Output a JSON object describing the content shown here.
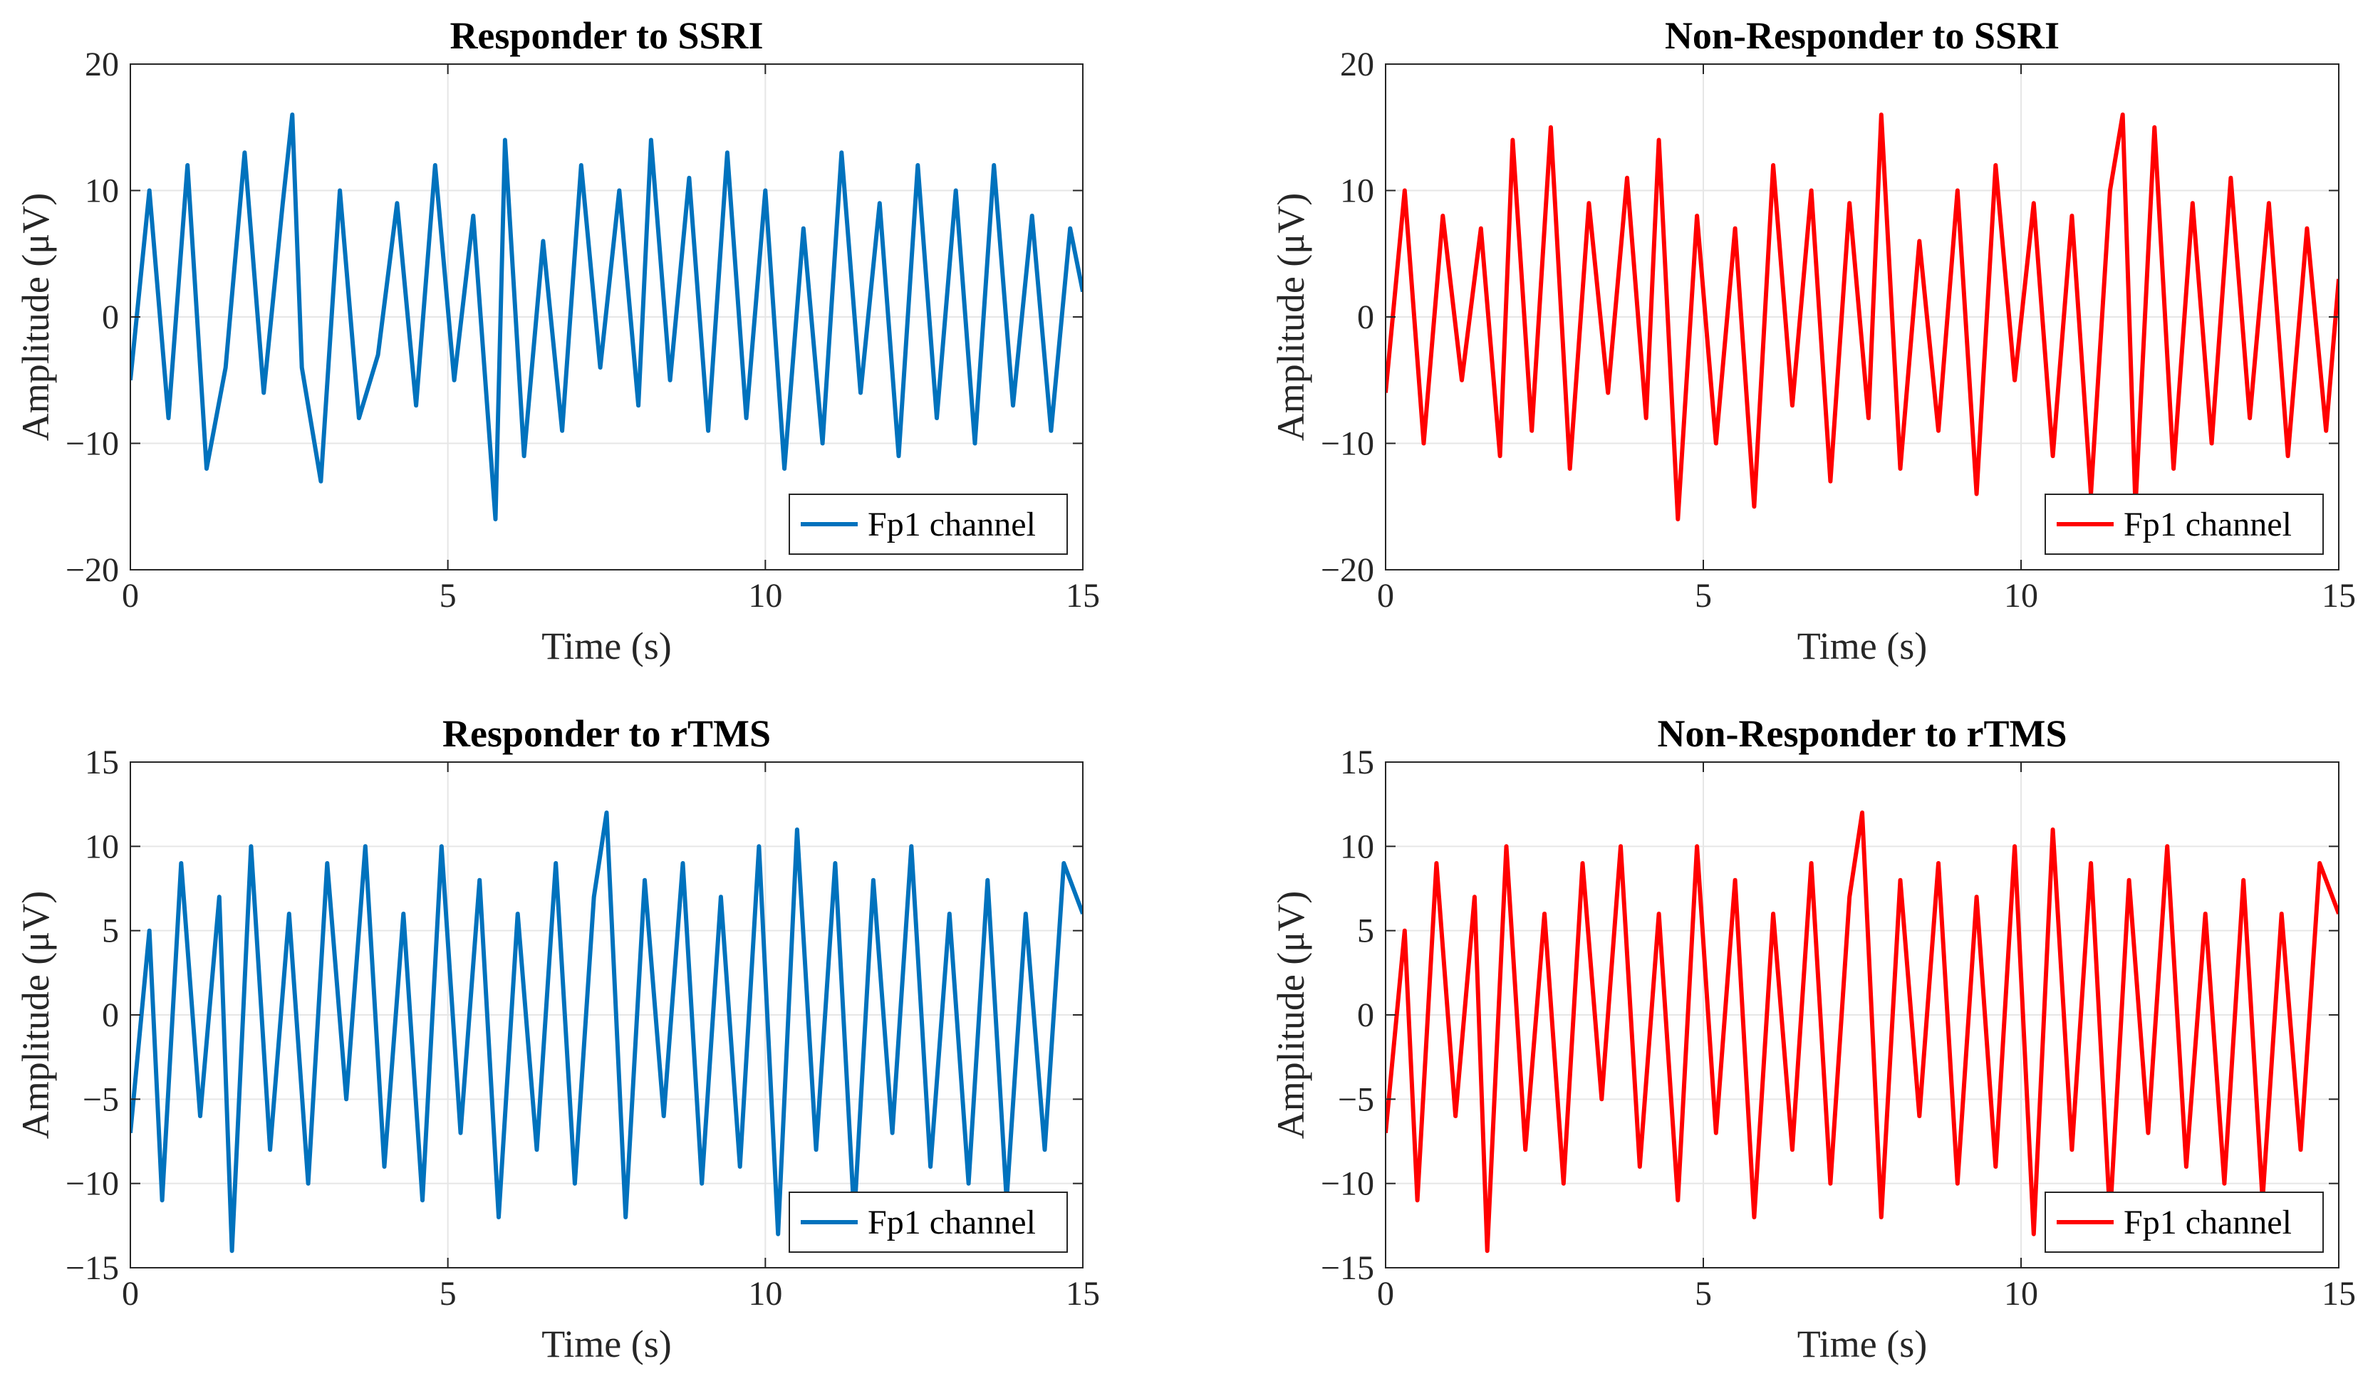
{
  "chart_data": [
    {
      "type": "line",
      "title": "Responder to SSRI",
      "xlabel": "Time (s)",
      "ylabel": "Amplitude (μV)",
      "xlim": [
        0,
        15
      ],
      "ylim": [
        -20,
        20
      ],
      "xticks": [
        0,
        5,
        10,
        15
      ],
      "yticks": [
        -20,
        -10,
        0,
        10,
        20
      ],
      "ytick_labels": [
        "−20",
        "−10",
        "0",
        "10",
        "20"
      ],
      "grid": true,
      "legend_position": "bottom-right",
      "series": [
        {
          "name": "Fp1 channel",
          "color": "#0072BD",
          "x": [
            0,
            0.3,
            0.6,
            0.9,
            1.2,
            1.5,
            1.8,
            2.1,
            2.4,
            2.55,
            2.7,
            3.0,
            3.3,
            3.6,
            3.9,
            4.2,
            4.5,
            4.8,
            5.1,
            5.4,
            5.75,
            5.9,
            6.2,
            6.5,
            6.8,
            7.1,
            7.4,
            7.7,
            8.0,
            8.2,
            8.5,
            8.8,
            9.1,
            9.4,
            9.7,
            10.0,
            10.3,
            10.6,
            10.9,
            11.2,
            11.5,
            11.8,
            12.1,
            12.4,
            12.7,
            13.0,
            13.3,
            13.6,
            13.9,
            14.2,
            14.5,
            14.8,
            15.0
          ],
          "values": [
            -5,
            10,
            -8,
            12,
            -12,
            -4,
            13,
            -6,
            9,
            16,
            -4,
            -13,
            10,
            -8,
            -3,
            9,
            -7,
            12,
            -5,
            8,
            -16,
            14,
            -11,
            6,
            -9,
            12,
            -4,
            10,
            -7,
            14,
            -5,
            11,
            -9,
            13,
            -8,
            10,
            -12,
            7,
            -10,
            13,
            -6,
            9,
            -11,
            12,
            -8,
            10,
            -10,
            12,
            -7,
            8,
            -9,
            7,
            2
          ]
        }
      ]
    },
    {
      "type": "line",
      "title": "Non-Responder to SSRI",
      "xlabel": "Time (s)",
      "ylabel": "Amplitude (μV)",
      "xlim": [
        0,
        15
      ],
      "ylim": [
        -20,
        20
      ],
      "xticks": [
        0,
        5,
        10,
        15
      ],
      "yticks": [
        -20,
        -10,
        0,
        10,
        20
      ],
      "ytick_labels": [
        "−20",
        "−10",
        "0",
        "10",
        "20"
      ],
      "grid": true,
      "legend_position": "bottom-right",
      "series": [
        {
          "name": "Fp1 channel",
          "color": "#FF0000",
          "x": [
            0,
            0.3,
            0.6,
            0.9,
            1.2,
            1.5,
            1.8,
            2.0,
            2.3,
            2.6,
            2.9,
            3.2,
            3.5,
            3.8,
            4.1,
            4.3,
            4.6,
            4.9,
            5.2,
            5.5,
            5.8,
            6.1,
            6.4,
            6.7,
            7.0,
            7.3,
            7.6,
            7.8,
            8.1,
            8.4,
            8.7,
            9.0,
            9.3,
            9.6,
            9.9,
            10.2,
            10.5,
            10.8,
            11.1,
            11.4,
            11.6,
            11.8,
            12.1,
            12.4,
            12.7,
            13.0,
            13.3,
            13.6,
            13.9,
            14.2,
            14.5,
            14.8,
            15.0
          ],
          "values": [
            -6,
            10,
            -10,
            8,
            -5,
            7,
            -11,
            14,
            -9,
            15,
            -12,
            9,
            -6,
            11,
            -8,
            14,
            -16,
            8,
            -10,
            7,
            -15,
            12,
            -7,
            10,
            -13,
            9,
            -8,
            16,
            -12,
            6,
            -9,
            10,
            -14,
            12,
            -5,
            9,
            -11,
            8,
            -14,
            10,
            16,
            -15,
            15,
            -12,
            9,
            -10,
            11,
            -8,
            9,
            -11,
            7,
            -9,
            3
          ]
        }
      ]
    },
    {
      "type": "line",
      "title": "Responder to rTMS",
      "xlabel": "Time (s)",
      "ylabel": "Amplitude (μV)",
      "xlim": [
        0,
        15
      ],
      "ylim": [
        -15,
        15
      ],
      "xticks": [
        0,
        5,
        10,
        15
      ],
      "yticks": [
        -15,
        -10,
        -5,
        0,
        5,
        10,
        15
      ],
      "ytick_labels": [
        "−15",
        "−10",
        "−5",
        "0",
        "5",
        "10",
        "15"
      ],
      "grid": true,
      "legend_position": "bottom-right",
      "series": [
        {
          "name": "Fp1 channel",
          "color": "#0072BD",
          "x": [
            0,
            0.3,
            0.5,
            0.8,
            1.1,
            1.4,
            1.6,
            1.9,
            2.2,
            2.5,
            2.8,
            3.1,
            3.4,
            3.7,
            4.0,
            4.3,
            4.6,
            4.9,
            5.2,
            5.5,
            5.8,
            6.1,
            6.4,
            6.7,
            7.0,
            7.3,
            7.5,
            7.8,
            8.1,
            8.4,
            8.7,
            9.0,
            9.3,
            9.6,
            9.9,
            10.2,
            10.5,
            10.8,
            11.1,
            11.4,
            11.7,
            12.0,
            12.3,
            12.6,
            12.9,
            13.2,
            13.5,
            13.8,
            14.1,
            14.4,
            14.7,
            15.0
          ],
          "values": [
            -7,
            5,
            -11,
            9,
            -6,
            7,
            -14,
            10,
            -8,
            6,
            -10,
            9,
            -5,
            10,
            -9,
            6,
            -11,
            10,
            -7,
            8,
            -12,
            6,
            -8,
            9,
            -10,
            7,
            12,
            -12,
            8,
            -6,
            9,
            -10,
            7,
            -9,
            10,
            -13,
            11,
            -8,
            9,
            -12,
            8,
            -7,
            10,
            -9,
            6,
            -10,
            8,
            -11,
            6,
            -8,
            9,
            6
          ]
        }
      ]
    },
    {
      "type": "line",
      "title": "Non-Responder to rTMS",
      "xlabel": "Time (s)",
      "ylabel": "Amplitude (μV)",
      "xlim": [
        0,
        15
      ],
      "ylim": [
        -15,
        15
      ],
      "xticks": [
        0,
        5,
        10,
        15
      ],
      "yticks": [
        -15,
        -10,
        -5,
        0,
        5,
        10,
        15
      ],
      "ytick_labels": [
        "−15",
        "−10",
        "−5",
        "0",
        "5",
        "10",
        "15"
      ],
      "grid": true,
      "legend_position": "bottom-right",
      "series": [
        {
          "name": "Fp1 channel",
          "color": "#FF0000",
          "x": [
            0,
            0.3,
            0.5,
            0.8,
            1.1,
            1.4,
            1.6,
            1.9,
            2.2,
            2.5,
            2.8,
            3.1,
            3.4,
            3.7,
            4.0,
            4.3,
            4.6,
            4.9,
            5.2,
            5.5,
            5.8,
            6.1,
            6.4,
            6.7,
            7.0,
            7.3,
            7.5,
            7.8,
            8.1,
            8.4,
            8.7,
            9.0,
            9.3,
            9.6,
            9.9,
            10.2,
            10.5,
            10.8,
            11.1,
            11.4,
            11.7,
            12.0,
            12.3,
            12.6,
            12.9,
            13.2,
            13.5,
            13.8,
            14.1,
            14.4,
            14.7,
            15.0
          ],
          "values": [
            -7,
            5,
            -11,
            9,
            -6,
            7,
            -14,
            10,
            -8,
            6,
            -10,
            9,
            -5,
            10,
            -9,
            6,
            -11,
            10,
            -7,
            8,
            -12,
            6,
            -8,
            9,
            -10,
            7,
            12,
            -12,
            8,
            -6,
            9,
            -10,
            7,
            -9,
            10,
            -13,
            11,
            -8,
            9,
            -12,
            8,
            -7,
            10,
            -9,
            6,
            -10,
            8,
            -11,
            6,
            -8,
            9,
            6
          ]
        }
      ]
    }
  ]
}
